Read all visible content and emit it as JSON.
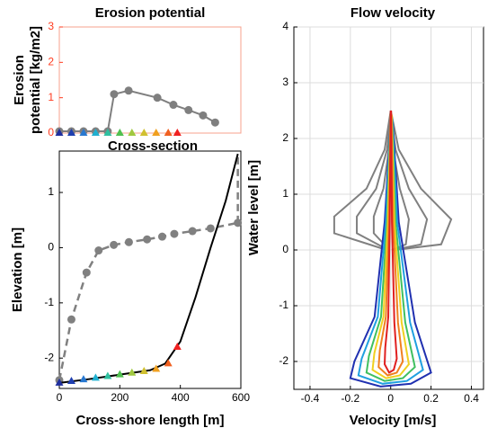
{
  "chart_data": [
    {
      "type": "line",
      "title": "Erosion potential",
      "y_label": [
        "Erosion",
        "potential [kg/m2]"
      ],
      "xlim": [
        0,
        600
      ],
      "ylim": [
        0,
        3
      ],
      "yticks": [
        0,
        1,
        2,
        3
      ],
      "axis_color": "#ff3b1f",
      "frame_color": "#f7a08c",
      "grid": false,
      "series": [
        {
          "color": "#7f7f7f",
          "marker": "circle",
          "dash": false,
          "x": [
            0,
            40,
            80,
            120,
            160,
            181,
            229,
            324,
            377,
            427,
            475,
            515
          ],
          "values": [
            0.05,
            0.05,
            0.05,
            0.05,
            0.05,
            1.1,
            1.2,
            1.0,
            0.8,
            0.65,
            0.5,
            0.3
          ]
        },
        {
          "color": "#2040c0",
          "marker": "triangle",
          "dash": false,
          "line": false,
          "colors": [
            "#1f2f9f",
            "#1f3fb0",
            "#2878d0",
            "#20b0d0",
            "#30c0a0",
            "#50c050",
            "#a0c840",
            "#d0c030",
            "#f0a020",
            "#f06020",
            "#f02020"
          ],
          "x": [
            0,
            40,
            80,
            120,
            160,
            200,
            240,
            280,
            320,
            360,
            390
          ],
          "values": [
            0,
            0,
            0,
            0,
            0,
            0,
            0,
            0,
            0,
            0,
            0
          ]
        }
      ]
    },
    {
      "type": "line",
      "title": "Cross-section",
      "x_label": "Cross-shore length [m]",
      "y_label": "Elevation [m]",
      "xlim": [
        0,
        600
      ],
      "ylim": [
        -2.55,
        1.75
      ],
      "xticks": [
        0,
        200,
        400,
        600
      ],
      "yticks": [
        -2,
        -1,
        0,
        1
      ],
      "grid": false,
      "series": [
        {
          "color": "#808080",
          "marker": "circle",
          "dash": true,
          "x": [
            0,
            40,
            90,
            130,
            180,
            230,
            290,
            340,
            380,
            440,
            500,
            590
          ],
          "values": [
            -2.4,
            -1.3,
            -0.45,
            -0.05,
            0.05,
            0.1,
            0.15,
            0.2,
            0.25,
            0.3,
            0.35,
            0.45
          ]
        },
        {
          "color": "#808080",
          "marker": "none",
          "dash": true,
          "x": [
            590,
            590
          ],
          "values": [
            0.45,
            1.7
          ]
        },
        {
          "color": "#000000",
          "marker": "none",
          "dash": false,
          "x": [
            0,
            100,
            200,
            300,
            350,
            400,
            450,
            500,
            550,
            590
          ],
          "values": [
            -2.45,
            -2.38,
            -2.3,
            -2.22,
            -2.1,
            -1.7,
            -0.9,
            0,
            0.85,
            1.7
          ]
        },
        {
          "color": "#2040c0",
          "marker": "triangle",
          "dash": false,
          "line": false,
          "colors": [
            "#1f2f9f",
            "#1f3fb0",
            "#2878d0",
            "#20b0d0",
            "#30c0a0",
            "#50c050",
            "#a0c840",
            "#d0c030",
            "#f0a020",
            "#f06020",
            "#f02020"
          ],
          "x": [
            0,
            40,
            80,
            120,
            160,
            200,
            240,
            280,
            320,
            360,
            390
          ],
          "values": [
            -2.45,
            -2.42,
            -2.39,
            -2.36,
            -2.33,
            -2.3,
            -2.27,
            -2.24,
            -2.2,
            -2.1,
            -1.8
          ]
        }
      ]
    },
    {
      "type": "line",
      "title": "Flow velocity",
      "x_label": "Velocity [m/s]",
      "y_label": "Water level [m]",
      "xlim": [
        -0.48,
        0.46
      ],
      "ylim": [
        -2.5,
        4
      ],
      "xticks": [
        -0.4,
        -0.2,
        0,
        0.2,
        0.4
      ],
      "yticks": [
        -2,
        -1,
        0,
        1,
        2,
        3,
        4
      ],
      "grid": true,
      "series": [
        {
          "color": "#808080",
          "marker": "none",
          "dash": false,
          "x": [
            -0.02,
            -0.28,
            -0.28,
            -0.12,
            -0.03,
            0,
            0.04,
            0.15,
            0.3,
            0.25,
            0.02
          ],
          "values": [
            0,
            0.3,
            0.6,
            1.1,
            1.8,
            2.5,
            1.8,
            1.1,
            0.55,
            0.1,
            0
          ]
        },
        {
          "color": "#808080",
          "marker": "none",
          "dash": false,
          "x": [
            -0.012,
            -0.168,
            -0.168,
            -0.072,
            -0.018,
            0,
            0.024,
            0.09,
            0.18,
            0.15,
            0.012
          ],
          "values": [
            0,
            0.3,
            0.6,
            1.1,
            1.8,
            2.45,
            1.8,
            1.1,
            0.55,
            0.1,
            0
          ]
        },
        {
          "color": "#808080",
          "marker": "none",
          "dash": false,
          "x": [
            -0.006,
            -0.084,
            -0.084,
            -0.036,
            -0.009,
            0,
            0.012,
            0.045,
            0.09,
            0.075,
            0.006
          ],
          "values": [
            0,
            0.3,
            0.6,
            1.1,
            1.8,
            2.4,
            1.8,
            1.1,
            0.55,
            0.1,
            0
          ]
        },
        {
          "color": "#2030b0",
          "marker": "none",
          "dash": false,
          "x": [
            0,
            -0.03,
            -0.08,
            -0.18,
            -0.2,
            -0.05,
            0.1,
            0.2,
            0.12,
            0.04,
            0.01
          ],
          "values": [
            2.3,
            0.5,
            -1.2,
            -2.0,
            -2.3,
            -2.45,
            -2.4,
            -2.2,
            -1.3,
            0.5,
            2.3
          ]
        },
        {
          "color": "#20a0e0",
          "marker": "none",
          "dash": false,
          "x": [
            0,
            -0.024,
            -0.064,
            -0.144,
            -0.16,
            -0.04,
            0.08,
            0.16,
            0.096,
            0.032,
            0.008
          ],
          "values": [
            2.35,
            0.5,
            -1.2,
            -1.95,
            -2.25,
            -2.4,
            -2.35,
            -2.15,
            -1.3,
            0.5,
            2.35
          ]
        },
        {
          "color": "#40c060",
          "marker": "none",
          "dash": false,
          "x": [
            0,
            -0.018,
            -0.048,
            -0.108,
            -0.12,
            -0.03,
            0.06,
            0.12,
            0.072,
            0.024,
            0.006
          ],
          "values": [
            2.4,
            0.5,
            -1.2,
            -1.9,
            -2.2,
            -2.35,
            -2.3,
            -2.1,
            -1.3,
            0.5,
            2.4
          ]
        },
        {
          "color": "#f0d020",
          "marker": "none",
          "dash": false,
          "x": [
            0,
            -0.014,
            -0.036,
            -0.081,
            -0.09,
            -0.023,
            0.045,
            0.09,
            0.054,
            0.018,
            0.005
          ],
          "values": [
            2.42,
            0.5,
            -1.2,
            -1.85,
            -2.15,
            -2.3,
            -2.25,
            -2.05,
            -1.3,
            0.5,
            2.42
          ]
        },
        {
          "color": "#f08020",
          "marker": "none",
          "dash": false,
          "x": [
            0,
            -0.009,
            -0.024,
            -0.054,
            -0.06,
            -0.015,
            0.03,
            0.06,
            0.036,
            0.012,
            0.003
          ],
          "values": [
            2.45,
            0.5,
            -1.2,
            -1.8,
            -2.1,
            -2.25,
            -2.2,
            -2.0,
            -1.3,
            0.5,
            2.45
          ]
        },
        {
          "color": "#e02020",
          "marker": "none",
          "dash": false,
          "x": [
            0,
            -0.005,
            -0.012,
            -0.027,
            -0.03,
            -0.008,
            0.015,
            0.03,
            0.018,
            0.006,
            0.002
          ],
          "values": [
            2.5,
            0.5,
            -1.2,
            -1.75,
            -2.05,
            -2.2,
            -2.15,
            -1.95,
            -1.3,
            0.5,
            2.5
          ]
        }
      ]
    }
  ]
}
